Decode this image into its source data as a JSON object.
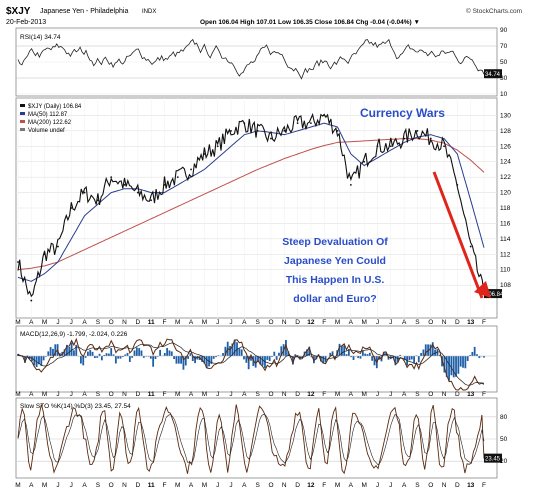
{
  "header": {
    "symbol": "$XJY",
    "name": "Japanese Yen - Philadelphia",
    "exchange": "INDX",
    "date": "20-Feb-2013",
    "brand": "© StockCharts.com",
    "quote": "Open 106.04  High 107.01  Low 106.35  Close 106.84  Chg -0.04 (-0.04%) ▼"
  },
  "panels": {
    "rsi_label": "RSI(14) 34.74",
    "price_legend": [
      "$XJY (Daily) 106.84",
      "MA(50) 112.87",
      "MA(200) 122.62",
      "Volume undef"
    ],
    "macd_label": "MACD(12,26,9) -1.799, -2.024, 0.226",
    "sto_label": "Slow STO %K(14) %D(3) 23.45, 27.54"
  },
  "annotations": {
    "title": "Currency Wars",
    "question": [
      "Steep Devaluation Of",
      "Japanese Yen Could",
      "This Happen In U.S.",
      "dollar and Euro?"
    ]
  },
  "colors": {
    "price": "#111111",
    "ma50": "#2a3d8f",
    "ma200": "#c0504d",
    "annotation": "#2a4dc9",
    "arrow": "#e0241b",
    "macd_hist": "#1f5fa8",
    "macd_line": "#5a2a10"
  },
  "chart_data": [
    {
      "type": "line",
      "panel": "RSI(14)",
      "y_ticks": [
        90,
        70,
        50,
        30,
        10
      ],
      "last_value": 34.74,
      "ylim": [
        10,
        90
      ]
    },
    {
      "type": "line",
      "panel": "price",
      "title": "$XJY (Daily) 106.84",
      "y_ticks": [
        130,
        128,
        126,
        124,
        122,
        120,
        118,
        116,
        114,
        112,
        110,
        108
      ],
      "ylim": [
        104,
        132
      ],
      "x_tick_labels": [
        "M",
        "A",
        "M",
        "J",
        "J",
        "A",
        "S",
        "O",
        "N",
        "D",
        "11",
        "F",
        "M",
        "A",
        "M",
        "J",
        "J",
        "A",
        "S",
        "O",
        "N",
        "D",
        "12",
        "F",
        "M",
        "A",
        "M",
        "J",
        "J",
        "A",
        "S",
        "O",
        "N",
        "D",
        "13",
        "F"
      ],
      "series": [
        {
          "name": "$XJY (Daily) 106.84",
          "x": [
            0,
            1,
            2,
            3,
            4,
            5,
            6,
            7,
            8,
            9,
            10,
            11,
            12,
            13,
            14,
            15,
            16,
            17,
            18,
            19,
            20,
            21,
            22,
            23,
            24,
            25,
            26,
            27,
            28,
            29,
            30,
            31,
            32,
            33,
            34,
            35
          ],
          "values": [
            111,
            106,
            112,
            113,
            118,
            120,
            119,
            122,
            121,
            120,
            119,
            121,
            122,
            123,
            125,
            126,
            128,
            129,
            128,
            127,
            128,
            129,
            129,
            130,
            128,
            121,
            124,
            126,
            126,
            127,
            128,
            127,
            126,
            121,
            113,
            106.84
          ]
        },
        {
          "name": "MA(50) 112.87",
          "x": [
            0,
            1,
            2,
            3,
            4,
            5,
            6,
            7,
            8,
            9,
            10,
            11,
            12,
            13,
            14,
            15,
            16,
            17,
            18,
            19,
            20,
            21,
            22,
            23,
            24,
            25,
            26,
            27,
            28,
            29,
            30,
            31,
            32,
            33,
            34,
            35
          ],
          "values": [
            109,
            108.5,
            109.5,
            111,
            114,
            117,
            118.5,
            120,
            120.5,
            120.5,
            120,
            120,
            121,
            122,
            123,
            124.5,
            126,
            127.5,
            128,
            127.8,
            127.5,
            128,
            128.5,
            129,
            128.5,
            125,
            123.5,
            124.5,
            125.5,
            126.5,
            127.2,
            127.5,
            127,
            125,
            119,
            112.87
          ]
        },
        {
          "name": "MA(200) 122.62",
          "x": [
            0,
            1,
            2,
            3,
            4,
            5,
            6,
            7,
            8,
            9,
            10,
            11,
            12,
            13,
            14,
            15,
            16,
            17,
            18,
            19,
            20,
            21,
            22,
            23,
            24,
            25,
            26,
            27,
            28,
            29,
            30,
            31,
            32,
            33,
            34,
            35
          ],
          "values": [
            110,
            110.2,
            110.5,
            111,
            111.8,
            112.6,
            113.4,
            114.2,
            115,
            115.8,
            116.6,
            117.4,
            118.2,
            119,
            119.8,
            120.6,
            121.4,
            122.2,
            123,
            123.7,
            124.4,
            125,
            125.6,
            126.1,
            126.5,
            126.6,
            126.7,
            126.8,
            126.9,
            127,
            127,
            126.8,
            126.4,
            125.5,
            124.2,
            122.62
          ]
        }
      ]
    },
    {
      "type": "line",
      "panel": "MACD(12,26,9)",
      "values_label": "-1.799, -2.024, 0.226",
      "last_value": -1.799
    },
    {
      "type": "line",
      "panel": "Slow STO %K(14) %D(3)",
      "y_ticks": [
        80,
        50,
        20
      ],
      "ylim": [
        0,
        100
      ],
      "last_value": 23.45
    }
  ]
}
